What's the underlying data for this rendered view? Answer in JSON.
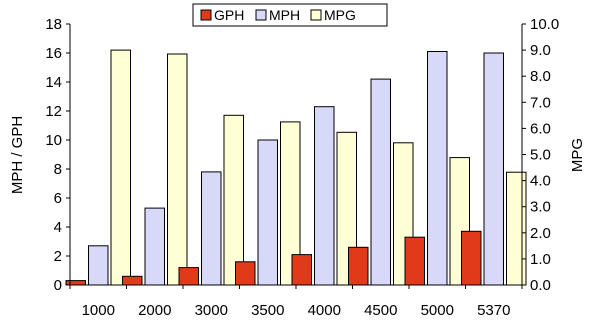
{
  "chart_data": {
    "type": "bar",
    "categories": [
      "1000",
      "2000",
      "3000",
      "3500",
      "4000",
      "4500",
      "5000",
      "5370"
    ],
    "series": [
      {
        "name": "GPH",
        "axis": "left",
        "color": "#e03a1a",
        "values": [
          0.3,
          0.6,
          1.2,
          1.6,
          2.1,
          2.6,
          3.3,
          3.7
        ]
      },
      {
        "name": "MPH",
        "axis": "left",
        "color": "#d8d8f8",
        "values": [
          2.7,
          5.3,
          7.8,
          10.0,
          12.3,
          14.2,
          16.1,
          16.0
        ]
      },
      {
        "name": "MPG",
        "axis": "right",
        "color": "#ffffd6",
        "values": [
          9.0,
          8.85,
          6.5,
          6.25,
          5.85,
          5.45,
          4.88,
          4.32
        ]
      }
    ],
    "ylabel": "MPH / GPH",
    "y2label": "MPG",
    "ylim": [
      0,
      18
    ],
    "y2lim": [
      0,
      10
    ],
    "yticks": [
      "0",
      "2",
      "4",
      "6",
      "8",
      "10",
      "12",
      "14",
      "16",
      "18"
    ],
    "y2ticks": [
      "0.0",
      "1.0",
      "2.0",
      "3.0",
      "4.0",
      "5.0",
      "6.0",
      "7.0",
      "8.0",
      "9.0",
      "10.0"
    ],
    "legend_position": "top-center",
    "grid": false
  }
}
